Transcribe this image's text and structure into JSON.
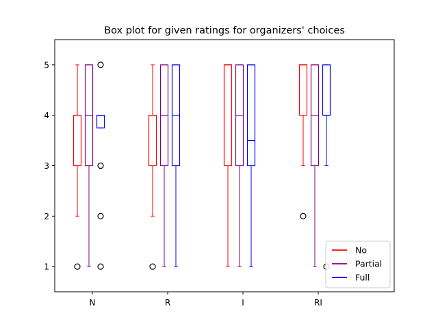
{
  "chart_data": {
    "type": "box",
    "title": "Box plot for given ratings for organizers' choices",
    "xlabel": "",
    "ylabel": "",
    "categories": [
      "N",
      "R",
      "I",
      "RI"
    ],
    "ylim": [
      0.5,
      5.5
    ],
    "yticks": [
      1,
      2,
      3,
      4,
      5
    ],
    "grid": false,
    "legend_position": "lower-right",
    "series": [
      {
        "name": "No",
        "color": "#ff0000",
        "boxes": [
          {
            "category": "N",
            "whisker_low": 2,
            "q1": 3,
            "median": 4,
            "q3": 4,
            "whisker_high": 5,
            "outliers": [
              1
            ]
          },
          {
            "category": "R",
            "whisker_low": 2,
            "q1": 3,
            "median": 4,
            "q3": 4,
            "whisker_high": 5,
            "outliers": [
              1
            ]
          },
          {
            "category": "I",
            "whisker_low": 1,
            "q1": 3,
            "median": 5,
            "q3": 5,
            "whisker_high": 5,
            "outliers": []
          },
          {
            "category": "RI",
            "whisker_low": 3,
            "q1": 4,
            "median": 5,
            "q3": 5,
            "whisker_high": 5,
            "outliers": [
              2
            ]
          }
        ]
      },
      {
        "name": "Partial",
        "color": "#800080",
        "boxes": [
          {
            "category": "N",
            "whisker_low": 1,
            "q1": 3,
            "median": 4,
            "q3": 5,
            "whisker_high": 5,
            "outliers": []
          },
          {
            "category": "R",
            "whisker_low": 1,
            "q1": 3,
            "median": 4,
            "q3": 5,
            "whisker_high": 5,
            "outliers": []
          },
          {
            "category": "I",
            "whisker_low": 1,
            "q1": 3,
            "median": 4,
            "q3": 5,
            "whisker_high": 5,
            "outliers": []
          },
          {
            "category": "RI",
            "whisker_low": 1,
            "q1": 3,
            "median": 4,
            "q3": 5,
            "whisker_high": 5,
            "outliers": []
          }
        ]
      },
      {
        "name": "Full",
        "color": "#0000ff",
        "boxes": [
          {
            "category": "N",
            "whisker_low": 3.75,
            "q1": 3.75,
            "median": 4,
            "q3": 4,
            "whisker_high": 4,
            "outliers": [
              1,
              2,
              3,
              5
            ]
          },
          {
            "category": "R",
            "whisker_low": 1,
            "q1": 3,
            "median": 4,
            "q3": 5,
            "whisker_high": 5,
            "outliers": []
          },
          {
            "category": "I",
            "whisker_low": 1,
            "q1": 3,
            "median": 3.5,
            "q3": 5,
            "whisker_high": 5,
            "outliers": []
          },
          {
            "category": "RI",
            "whisker_low": 3,
            "q1": 4,
            "median": 4,
            "q3": 5,
            "whisker_high": 5,
            "outliers": [
              1
            ]
          }
        ]
      }
    ]
  }
}
